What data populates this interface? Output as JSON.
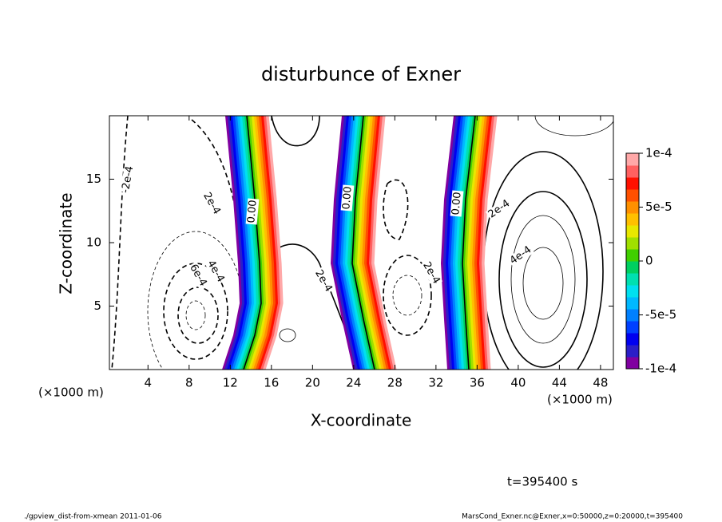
{
  "chart_data": {
    "type": "contour",
    "title": "disturbunce of Exner",
    "x_label": "X-coordinate",
    "y_label": "Z-coordinate",
    "x_unit_left": "(×1000 m)",
    "x_unit_right": "(×1000 m)",
    "xlim": [
      0.25,
      49.25
    ],
    "ylim": [
      0,
      20
    ],
    "xticks": [
      4,
      8,
      12,
      16,
      20,
      24,
      28,
      32,
      36,
      40,
      44,
      48
    ],
    "yticks": [
      5,
      10,
      15
    ],
    "colorbar": {
      "lim": [
        -0.0001,
        0.0001
      ],
      "ticks": [
        {
          "value": 0.0001,
          "label": "1e-4"
        },
        {
          "value": 5e-05,
          "label": "5e-5"
        },
        0,
        {
          "value": -5e-05,
          "label": "-5e-5"
        },
        {
          "value": -0.0001,
          "label": "-1e-4"
        }
      ],
      "colors": [
        "#8000a0",
        "#2a1ec8",
        "#0000f0",
        "#0040ff",
        "#0080ff",
        "#00b8ff",
        "#00e0f0",
        "#00e0b0",
        "#00d060",
        "#40d000",
        "#a0e000",
        "#e8e800",
        "#ffc000",
        "#ff9000",
        "#ff5000",
        "#ff1000",
        "#ff6060",
        "#ffa8a8"
      ]
    },
    "contour_labels": [
      "-2e-4",
      "2e-4",
      "0.00",
      "0.00",
      "0.00",
      "2e-4",
      "4e-4",
      "2e-4",
      "2e-4",
      "4e-4",
      "6e-4"
    ],
    "time_label": "t=395400 s",
    "footer_left": "./gpview_dist-from-xmean  2011-01-06",
    "footer_right": "MarsCond_Exner.nc@Exner,x=0:50000,z=0:20000,t=395400"
  }
}
